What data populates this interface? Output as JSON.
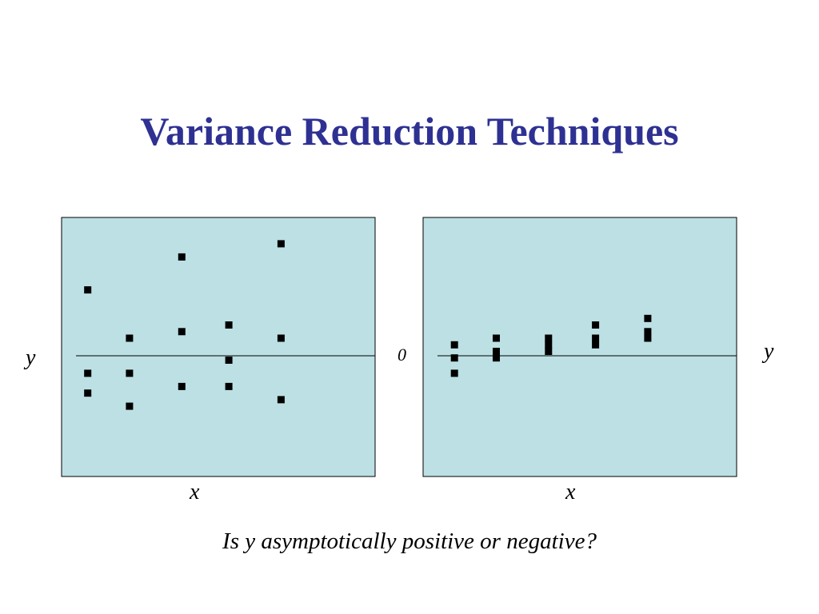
{
  "slide": {
    "title": "Variance Reduction Techniques",
    "caption": "Is y asymptotically positive or negative?",
    "zero_label": "0"
  },
  "colors": {
    "title": "#2E3192",
    "panel": "#BCE0E3",
    "marker": "#000000",
    "axis": "#000000"
  },
  "chart_data": [
    {
      "type": "scatter",
      "title": "",
      "xlabel": "x",
      "ylabel": "y",
      "xlim": [
        0,
        6
      ],
      "ylim": [
        -5.5,
        6.3
      ],
      "grid": false,
      "reference_line_y": 0,
      "ylabel_side": "left",
      "points": [
        {
          "x": 0.5,
          "y": 3.0
        },
        {
          "x": 0.5,
          "y": -0.8
        },
        {
          "x": 0.5,
          "y": -1.7
        },
        {
          "x": 1.3,
          "y": 0.8
        },
        {
          "x": 1.3,
          "y": -0.8
        },
        {
          "x": 1.3,
          "y": -2.3
        },
        {
          "x": 2.3,
          "y": 4.5
        },
        {
          "x": 2.3,
          "y": 1.1
        },
        {
          "x": 2.3,
          "y": -1.4
        },
        {
          "x": 3.2,
          "y": 1.4
        },
        {
          "x": 3.2,
          "y": -0.2
        },
        {
          "x": 3.2,
          "y": -1.4
        },
        {
          "x": 4.2,
          "y": 5.1
        },
        {
          "x": 4.2,
          "y": 0.8
        },
        {
          "x": 4.2,
          "y": -2.0
        }
      ]
    },
    {
      "type": "scatter",
      "title": "",
      "xlabel": "x",
      "ylabel": "y",
      "xlim": [
        0,
        6
      ],
      "ylim": [
        -5.5,
        6.3
      ],
      "grid": false,
      "reference_line_y": 0,
      "ylabel_side": "right",
      "points": [
        {
          "x": 0.6,
          "y": 0.5
        },
        {
          "x": 0.6,
          "y": -0.1
        },
        {
          "x": 0.6,
          "y": -0.8
        },
        {
          "x": 1.4,
          "y": 0.8
        },
        {
          "x": 1.4,
          "y": 0.2
        },
        {
          "x": 1.4,
          "y": -0.1
        },
        {
          "x": 2.4,
          "y": 0.8
        },
        {
          "x": 2.4,
          "y": 0.5
        },
        {
          "x": 2.4,
          "y": 0.2
        },
        {
          "x": 3.3,
          "y": 1.4
        },
        {
          "x": 3.3,
          "y": 0.8
        },
        {
          "x": 3.3,
          "y": 0.5
        },
        {
          "x": 4.3,
          "y": 1.7
        },
        {
          "x": 4.3,
          "y": 1.1
        },
        {
          "x": 4.3,
          "y": 0.8
        }
      ]
    }
  ]
}
